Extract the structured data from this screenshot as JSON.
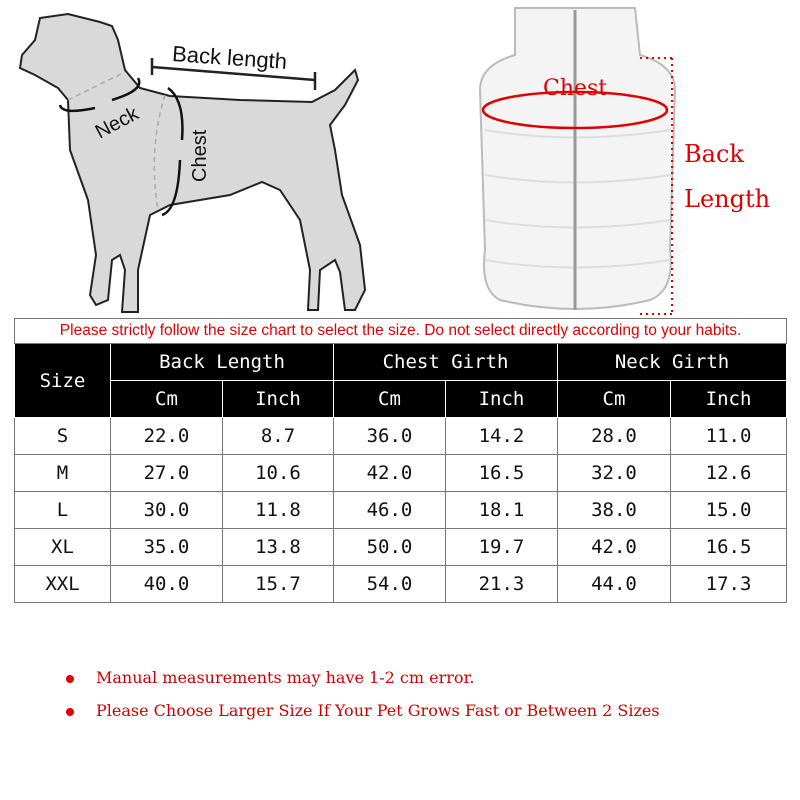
{
  "diagram": {
    "dog": {
      "back_length": "Back length",
      "neck": "Neck",
      "chest": "Chest"
    },
    "vest": {
      "chest": "Chest",
      "back_length": [
        "Back",
        "Length"
      ]
    }
  },
  "notice": "Please strictly follow the size chart to select the size. Do not select directly according to your habits.",
  "table": {
    "size_header": "Size",
    "groups": [
      "Back Length",
      "Chest Girth",
      "Neck Girth"
    ],
    "units": [
      "Cm",
      "Inch",
      "Cm",
      "Inch",
      "Cm",
      "Inch"
    ],
    "rows": [
      [
        "S",
        "22.0",
        "8.7",
        "36.0",
        "14.2",
        "28.0",
        "11.0"
      ],
      [
        "M",
        "27.0",
        "10.6",
        "42.0",
        "16.5",
        "32.0",
        "12.6"
      ],
      [
        "L",
        "30.0",
        "11.8",
        "46.0",
        "18.1",
        "38.0",
        "15.0"
      ],
      [
        "XL",
        "35.0",
        "13.8",
        "50.0",
        "19.7",
        "42.0",
        "16.5"
      ],
      [
        "XXL",
        "40.0",
        "15.7",
        "54.0",
        "21.3",
        "44.0",
        "17.3"
      ]
    ]
  },
  "notes": [
    "Manual measurements may have 1-2 cm error.",
    "Please Choose Larger Size If Your Pet Grows Fast or Between 2 Sizes"
  ],
  "colors": {
    "accent": "#e00000",
    "header_bg": "#000000",
    "dog_fill": "#d9d9d9"
  }
}
